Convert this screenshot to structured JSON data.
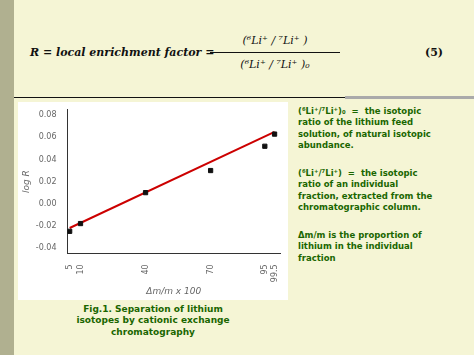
{
  "chart_data": {
    "type": "scatter",
    "xlabel": "Δm/m x 100",
    "ylabel": "log R",
    "series": [
      {
        "type": "scatter",
        "marker": "square",
        "color": "#111111",
        "x": [
          5,
          10,
          40,
          70,
          95,
          99.5
        ],
        "values": [
          -0.025,
          -0.018,
          0.01,
          0.03,
          0.052,
          0.063
        ]
      },
      {
        "type": "line",
        "color": "#cc0000",
        "x": [
          5,
          99.5
        ],
        "values": [
          -0.022,
          0.065
        ]
      }
    ],
    "xlim": [
      4,
      102
    ],
    "ylim": [
      -0.045,
      0.085
    ],
    "xticks": [
      5,
      10,
      40,
      70,
      95,
      99.5
    ],
    "yticks": [
      -0.04,
      -0.02,
      {
        "value": 0,
        "label": "0.00"
      },
      0.02,
      0.04,
      0.06,
      0.08
    ],
    "grid": false,
    "annotations": [
      "R = local enrichment factor =",
      "(⁶Li⁺ / ⁷Li⁺ )",
      "(⁶Li⁺ / ⁷Li⁺ )₀",
      "(5)",
      "Fig.1. Separation of lithium\nisotopes by cationic exchange\nchromatography",
      "(⁶Li⁺/⁷Li⁺)₀  =  the isotopic\nratio of the lithium feed\nsolution, of natural isotopic\nabundance.",
      "(⁶Li⁺/⁷Li⁺)  =  the isotopic\nratio of an individual\nfraction, extracted from the\nchromatographic column.",
      "Δm/m is the proportion of\nlithium in the individual\nfraction"
    ]
  }
}
